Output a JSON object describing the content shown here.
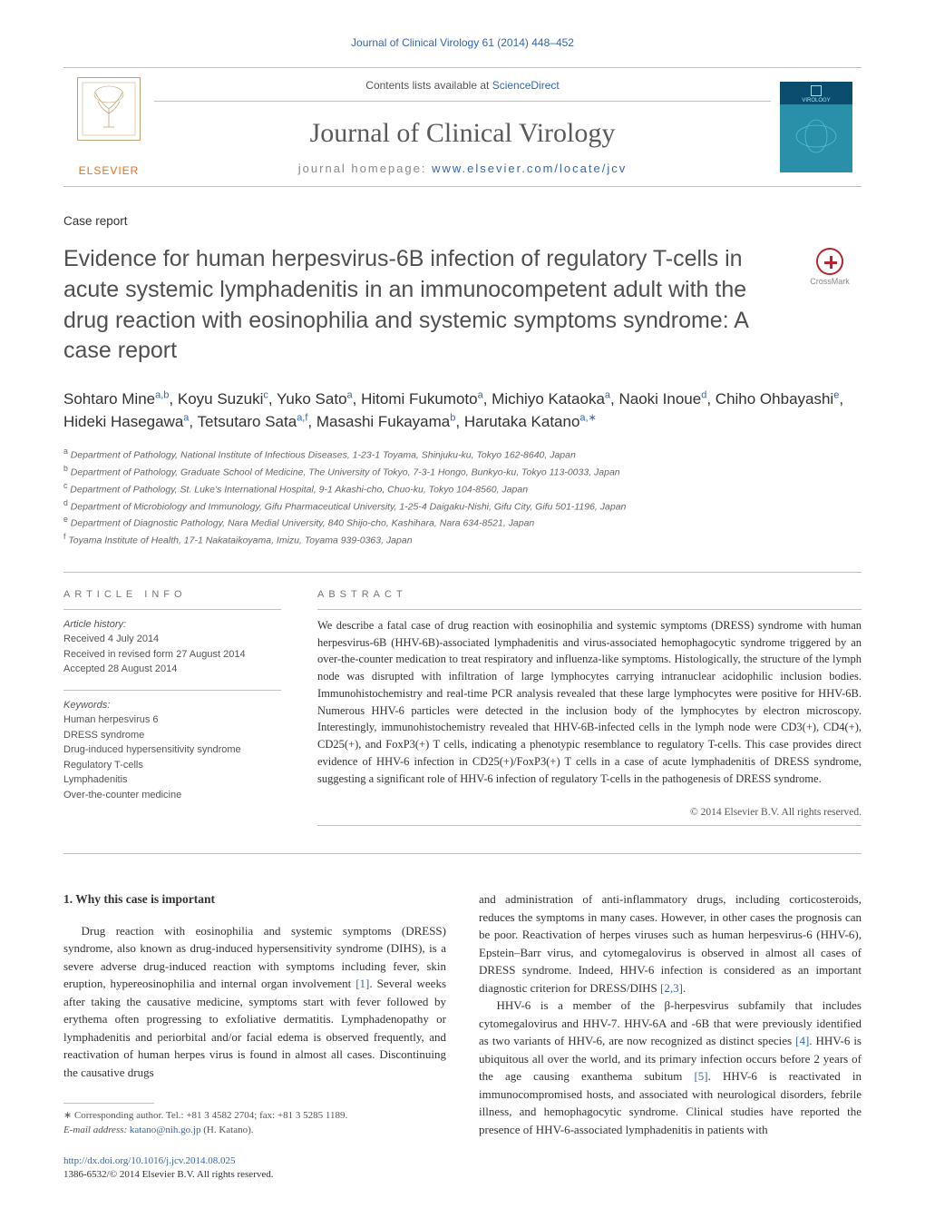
{
  "header": {
    "citation": "Journal of Clinical Virology 61 (2014) 448–452",
    "contents_prefix": "Contents lists available at ",
    "contents_link": "ScienceDirect",
    "journal_name": "Journal of Clinical Virology",
    "homepage_prefix": "journal homepage: ",
    "homepage_link": "www.elsevier.com/locate/jcv",
    "publisher": "ELSEVIER",
    "cover_text": "VIROLOGY"
  },
  "crossmark": {
    "label": "CrossMark"
  },
  "article": {
    "type": "Case report",
    "title": "Evidence for human herpesvirus-6B infection of regulatory T-cells in acute systemic lymphadenitis in an immunocompetent adult with the drug reaction with eosinophilia and systemic symptoms syndrome: A case report",
    "authors_html": "Sohtaro Mine<sup>a,b</sup>, Koyu Suzuki<sup>c</sup>, Yuko Sato<sup>a</sup>, Hitomi Fukumoto<sup>a</sup>, Michiyo Kataoka<sup>a</sup>, Naoki Inoue<sup>d</sup>, Chiho Ohbayashi<sup>e</sup>, Hideki Hasegawa<sup>a</sup>, Tetsutaro Sata<sup>a,f</sup>, Masashi Fukayama<sup>b</sup>, Harutaka Katano<sup>a,∗</sup>",
    "affiliations": [
      "a Department of Pathology, National Institute of Infectious Diseases, 1-23-1 Toyama, Shinjuku-ku, Tokyo 162-8640, Japan",
      "b Department of Pathology, Graduate School of Medicine, The University of Tokyo, 7-3-1 Hongo, Bunkyo-ku, Tokyo 113-0033, Japan",
      "c Department of Pathology, St. Luke's International Hospital, 9-1 Akashi-cho, Chuo-ku, Tokyo 104-8560, Japan",
      "d Department of Microbiology and Immunology, Gifu Pharmaceutical University, 1-25-4 Daigaku-Nishi, Gifu City, Gifu 501-1196, Japan",
      "e Department of Diagnostic Pathology, Nara Medial University, 840 Shijo-cho, Kashihara, Nara 634-8521, Japan",
      "f Toyama Institute of Health, 17-1 Nakataikoyama, Imizu, Toyama 939-0363, Japan"
    ]
  },
  "info": {
    "label": "article info",
    "history_heading": "Article history:",
    "history": [
      "Received 4 July 2014",
      "Received in revised form 27 August 2014",
      "Accepted 28 August 2014"
    ],
    "keywords_heading": "Keywords:",
    "keywords": [
      "Human herpesvirus 6",
      "DRESS syndrome",
      "Drug-induced hypersensitivity syndrome",
      "Regulatory T-cells",
      "Lymphadenitis",
      "Over-the-counter medicine"
    ]
  },
  "abstract": {
    "label": "abstract",
    "text": "We describe a fatal case of drug reaction with eosinophilia and systemic symptoms (DRESS) syndrome with human herpesvirus-6B (HHV-6B)-associated lymphadenitis and virus-associated hemophagocytic syndrome triggered by an over-the-counter medication to treat respiratory and influenza-like symptoms. Histologically, the structure of the lymph node was disrupted with infiltration of large lymphocytes carrying intranuclear acidophilic inclusion bodies. Immunohistochemistry and real-time PCR analysis revealed that these large lymphocytes were positive for HHV-6B. Numerous HHV-6 particles were detected in the inclusion body of the lymphocytes by electron microscopy. Interestingly, immunohistochemistry revealed that HHV-6B-infected cells in the lymph node were CD3(+), CD4(+), CD25(+), and FoxP3(+) T cells, indicating a phenotypic resemblance to regulatory T-cells. This case provides direct evidence of HHV-6 infection in CD25(+)/FoxP3(+) T cells in a case of acute lymphadenitis of DRESS syndrome, suggesting a significant role of HHV-6 infection of regulatory T-cells in the pathogenesis of DRESS syndrome.",
    "copyright": "© 2014 Elsevier B.V. All rights reserved."
  },
  "body": {
    "section_heading": "1. Why this case is important",
    "col1_p1_a": "Drug reaction with eosinophilia and systemic symptoms (DRESS) syndrome, also known as drug-induced hypersensitivity syndrome (DIHS), is a severe adverse drug-induced reaction with symptoms including fever, skin eruption, hypereosinophilia and internal organ involvement ",
    "col1_ref1": "[1]",
    "col1_p1_b": ". Several weeks after taking the causative medicine, symptoms start with fever followed by erythema often progressing to exfoliative dermatitis. Lymphadenopathy or lymphadenitis and periorbital and/or facial edema is observed frequently, and reactivation of human herpes virus is found in almost all cases. Discontinuing the causative drugs",
    "col2_p1_a": "and administration of anti-inflammatory drugs, including corticosteroids, reduces the symptoms in many cases. However, in other cases the prognosis can be poor. Reactivation of herpes viruses such as human herpesvirus-6 (HHV-6), Epstein–Barr virus, and cytomegalovirus is observed in almost all cases of DRESS syndrome. Indeed, HHV-6 infection is considered as an important diagnostic criterion for DRESS/DIHS ",
    "col2_ref23": "[2,3]",
    "col2_p1_b": ".",
    "col2_p2_a": "HHV-6 is a member of the β-herpesvirus subfamily that includes cytomegalovirus and HHV-7. HHV-6A and -6B that were previously identified as two variants of HHV-6, are now recognized as distinct species ",
    "col2_ref4": "[4]",
    "col2_p2_b": ". HHV-6 is ubiquitous all over the world, and its primary infection occurs before 2 years of the age causing exanthema subitum ",
    "col2_ref5": "[5]",
    "col2_p2_c": ". HHV-6 is reactivated in immunocompromised hosts, and associated with neurological disorders, febrile illness, and hemophagocytic syndrome. Clinical studies have reported the presence of HHV-6-associated lymphadenitis in patients with"
  },
  "footnote": {
    "corr": "∗ Corresponding author. Tel.: +81 3 4582 2704; fax: +81 3 5285 1189.",
    "email_label": "E-mail address: ",
    "email": "katano@nih.go.jp",
    "email_name": " (H. Katano)."
  },
  "footer": {
    "doi": "http://dx.doi.org/10.1016/j.jcv.2014.08.025",
    "issn_line": "1386-6532/© 2014 Elsevier B.V. All rights reserved."
  },
  "colors": {
    "link": "#3567b0",
    "elsevier_orange": "#e9711c",
    "crossmark_red": "#b7252f",
    "rule_gray": "#bfbfbf"
  }
}
